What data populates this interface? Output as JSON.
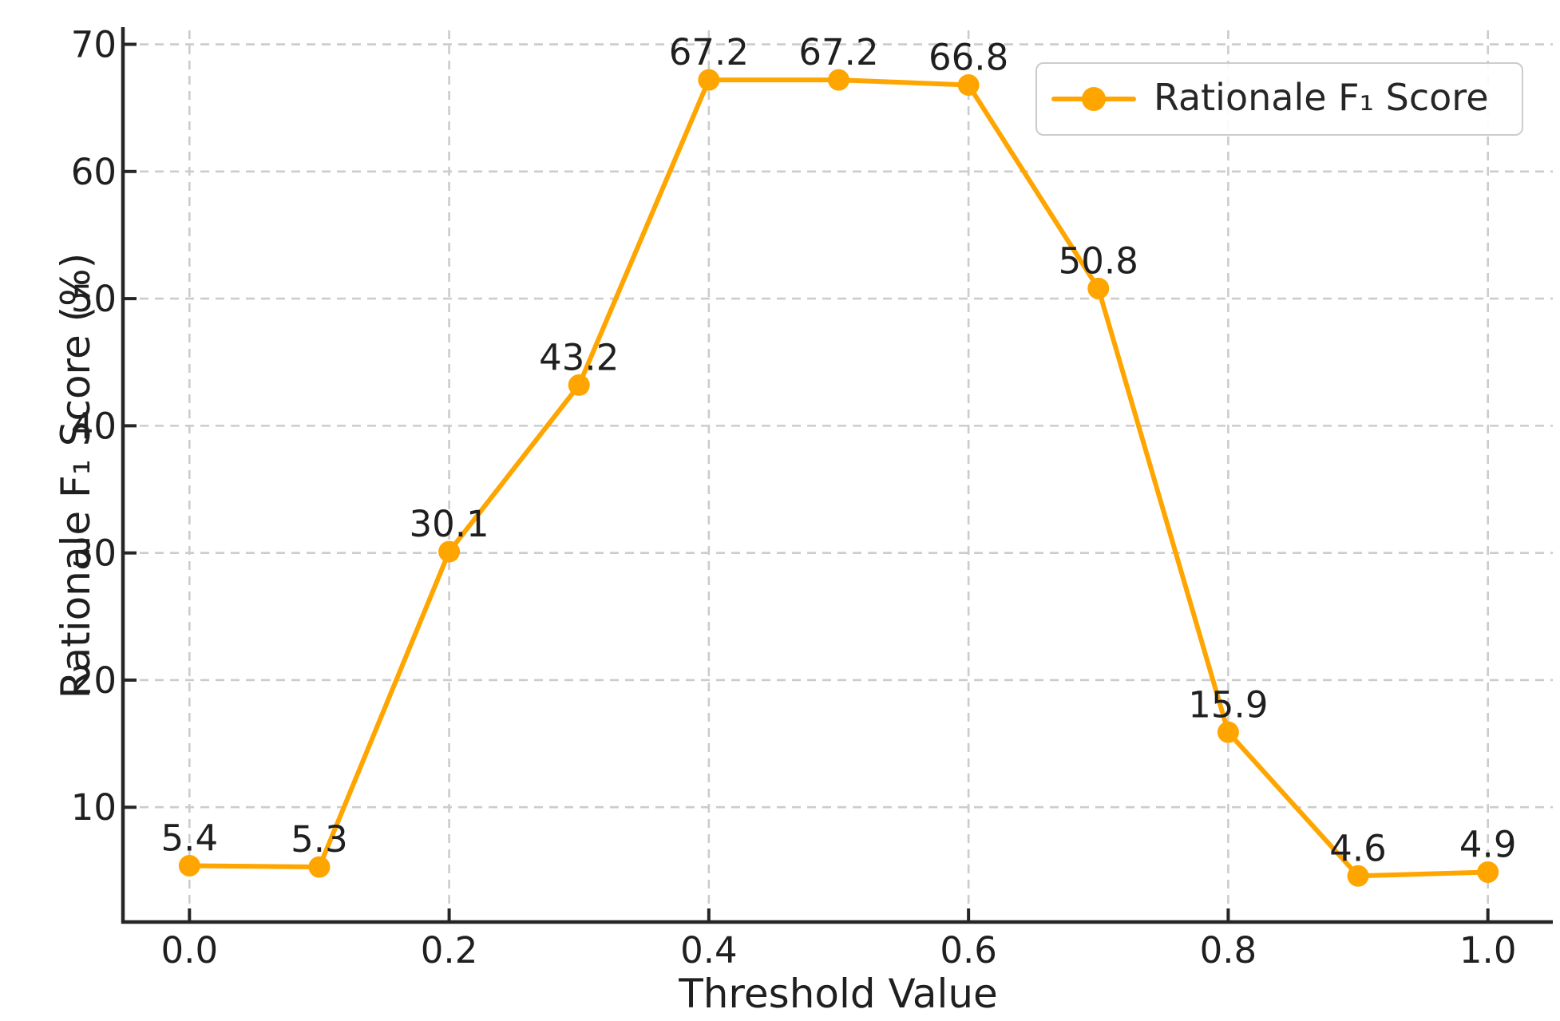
{
  "chart_data": {
    "type": "line",
    "title": "",
    "xlabel": "Threshold Value",
    "ylabel": "Rationale F₁ Score (%)",
    "legend": {
      "label": "Rationale F₁ Score",
      "position": "upper right"
    },
    "x": [
      0.0,
      0.1,
      0.2,
      0.3,
      0.4,
      0.5,
      0.6,
      0.7,
      0.8,
      0.9,
      1.0
    ],
    "series": [
      {
        "name": "Rationale F₁ Score",
        "values": [
          5.4,
          5.3,
          30.1,
          43.2,
          67.2,
          67.2,
          66.8,
          50.8,
          15.9,
          4.6,
          4.9
        ],
        "color": "#FFA500"
      }
    ],
    "data_labels": [
      "5.4",
      "5.3",
      "30.1",
      "43.2",
      "67.2",
      "67.2",
      "66.8",
      "50.8",
      "15.9",
      "4.6",
      "4.9"
    ],
    "x_ticks": {
      "values": [
        0.0,
        0.2,
        0.4,
        0.6,
        0.8,
        1.0
      ],
      "labels": [
        "0.0",
        "0.2",
        "0.4",
        "0.6",
        "0.8",
        "1.0"
      ]
    },
    "y_ticks": {
      "values": [
        10,
        20,
        30,
        40,
        50,
        60,
        70
      ],
      "labels": [
        "10",
        "20",
        "30",
        "40",
        "50",
        "60",
        "70"
      ]
    },
    "xlim": [
      -0.05,
      1.05
    ],
    "ylim": [
      1.1,
      71.1
    ],
    "grid": {
      "show": true,
      "style": "dashed"
    },
    "colors": {
      "line": "#FFA500",
      "marker": "#FFA500",
      "grid": "#cccccc",
      "axis": "#262626",
      "text": "#1f1f1f",
      "legend_border": "#cccccc",
      "background": "#ffffff"
    }
  }
}
